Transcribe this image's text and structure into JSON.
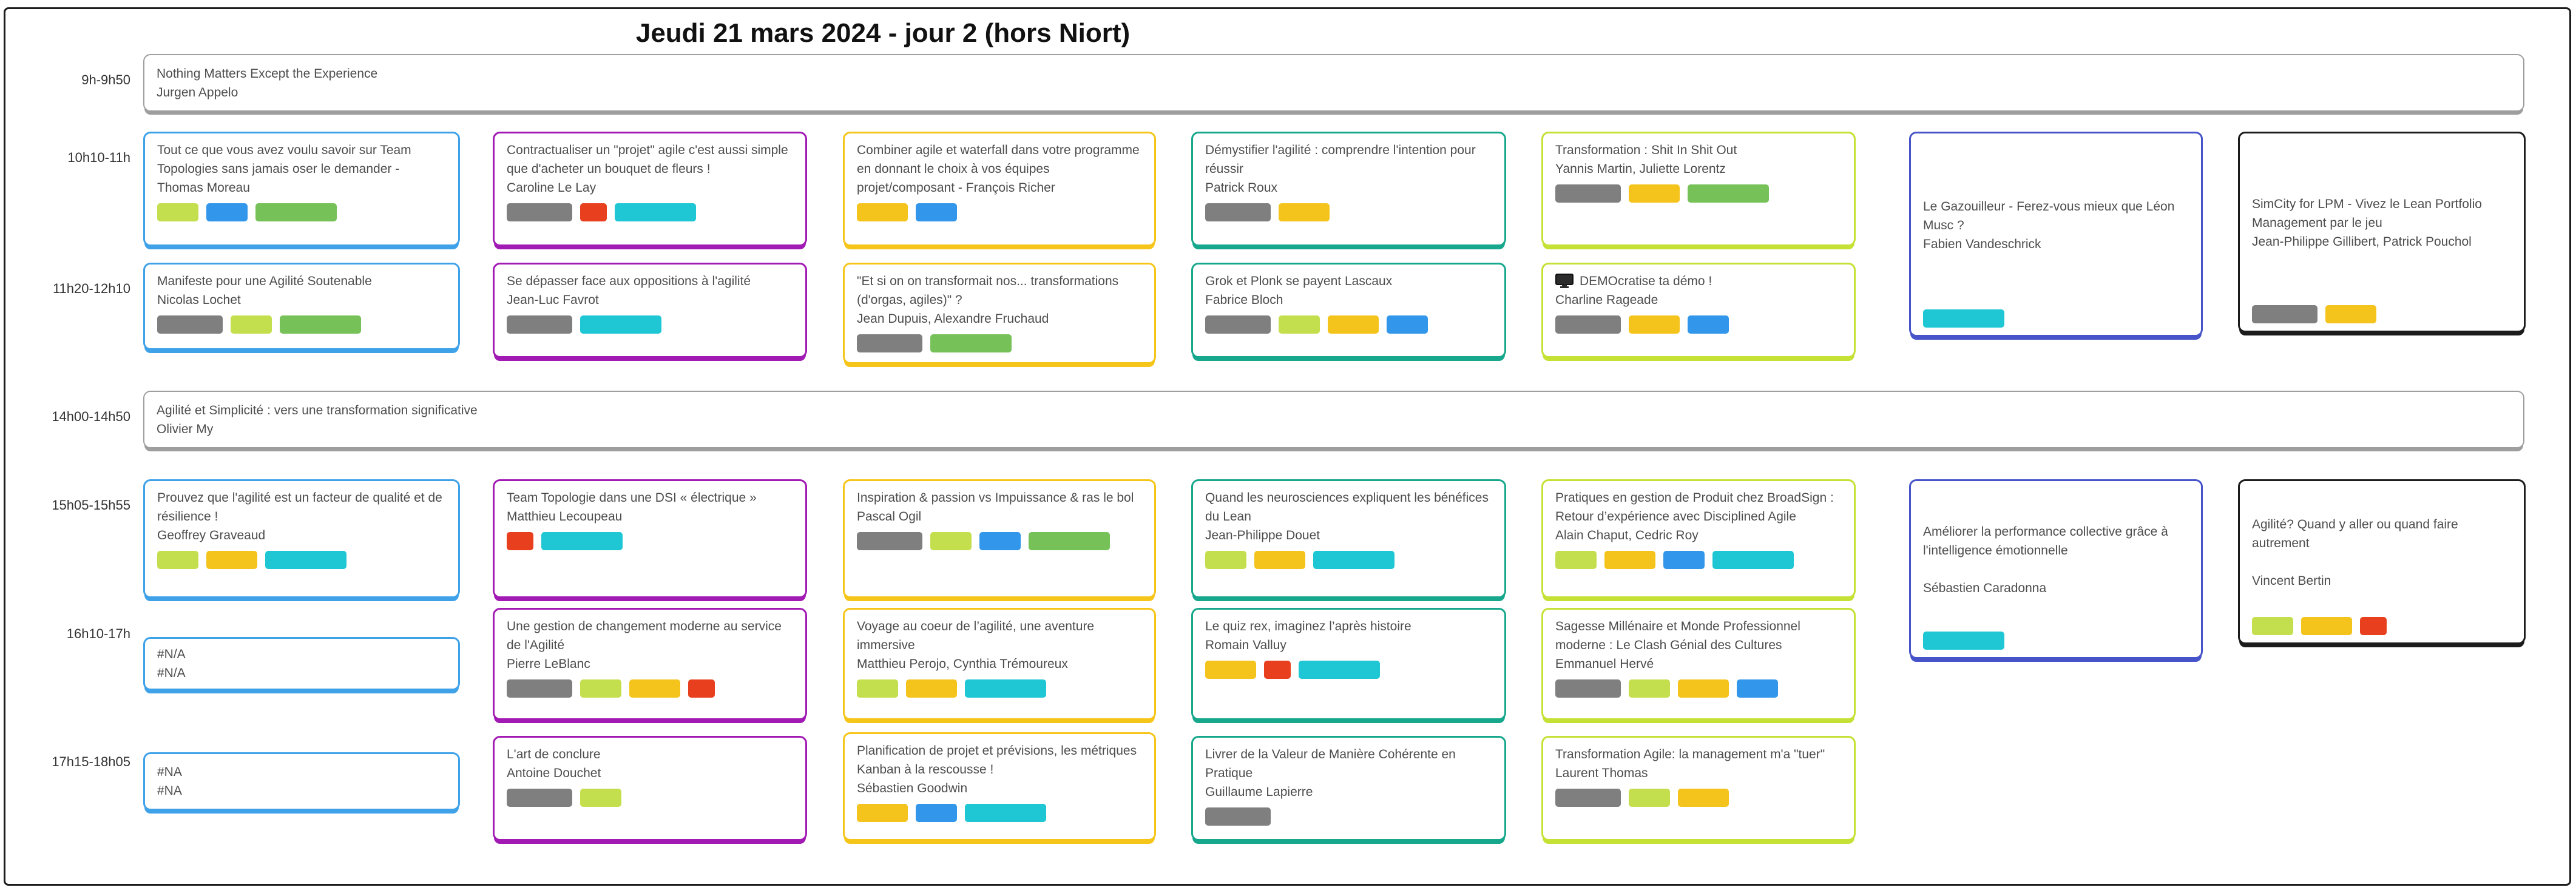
{
  "title": "Jeudi 21 mars 2024 - jour 2 (hors Niort)",
  "time_slots": [
    "9h-9h50",
    "10h10-11h",
    "11h20-12h10",
    "14h00-14h50",
    "15h05-15h55",
    "16h10-17h",
    "17h15-18h05"
  ],
  "palette": {
    "borders": {
      "blue": "#3FA2E9",
      "purple": "#A21AB4",
      "yellow": "#F6C51A",
      "teal": "#16A78C",
      "lime": "#C5E135",
      "indigo": "#4754C9",
      "black": "#1C1C1C",
      "gray": "#9E9E9E"
    },
    "tags": {
      "gray": "#7F7F7F",
      "lime": "#C4DF4D",
      "green": "#76C258",
      "blue": "#3296EA",
      "yellow": "#F5C41C",
      "teal": "#1FC7D5",
      "red": "#E8401F"
    }
  },
  "sessions": [
    {
      "id": "nothing-matters",
      "row": 0,
      "track": "full",
      "border": "gray",
      "title": "Nothing Matters Except the Experience",
      "speaker": "Jurgen Appelo",
      "tags": []
    },
    {
      "id": "team-topologies",
      "row": 1,
      "track": 0,
      "border": "blue",
      "title": "Tout ce que vous avez voulu savoir sur Team Topologies sans jamais oser le demander - Thomas Moreau",
      "speaker": "",
      "tags": [
        {
          "color": "lime",
          "size": "s"
        },
        {
          "color": "blue",
          "size": "s"
        },
        {
          "color": "green",
          "size": "xl"
        }
      ]
    },
    {
      "id": "contractualiser",
      "row": 1,
      "track": 1,
      "border": "purple",
      "title": "Contractualiser un \"projet\" agile c'est aussi simple que d'acheter un bouquet de fleurs !",
      "speaker": "Caroline Le Lay",
      "tags": [
        {
          "color": "gray",
          "size": "l"
        },
        {
          "color": "red",
          "size": "xs"
        },
        {
          "color": "teal",
          "size": "xl"
        }
      ]
    },
    {
      "id": "combiner",
      "row": 1,
      "track": 2,
      "border": "yellow",
      "title": "Combiner agile et waterfall dans votre programme en donnant le choix à vos équipes projet/composant - François Richer",
      "speaker": "",
      "tags": [
        {
          "color": "yellow",
          "size": "m"
        },
        {
          "color": "blue",
          "size": "s"
        }
      ]
    },
    {
      "id": "demystifier",
      "row": 1,
      "track": 3,
      "border": "teal",
      "title": "Démystifier l'agilité : comprendre l'intention pour réussir",
      "speaker": "Patrick Roux",
      "tags": [
        {
          "color": "gray",
          "size": "l"
        },
        {
          "color": "yellow",
          "size": "m"
        }
      ]
    },
    {
      "id": "shit-in-shit-out",
      "row": 1,
      "track": 4,
      "border": "lime",
      "title": "Transformation : Shit In Shit Out",
      "speaker": "Yannis Martin, Juliette Lorentz",
      "tags": [
        {
          "color": "gray",
          "size": "l"
        },
        {
          "color": "yellow",
          "size": "m"
        },
        {
          "color": "green",
          "size": "xl"
        }
      ]
    },
    {
      "id": "gazouilleur",
      "row": 1,
      "track": 5,
      "border": "indigo",
      "tall": true,
      "title": "Le Gazouilleur - Ferez-vous mieux que Léon Musc ?",
      "speaker": "Fabien Vandeschrick",
      "tags": [
        {
          "color": "teal",
          "size": "xl"
        }
      ]
    },
    {
      "id": "simcity",
      "row": 1,
      "track": 6,
      "border": "black",
      "tall": true,
      "title": "SimCity for LPM - Vivez le Lean Portfolio Management par le jeu",
      "speaker": "Jean-Philippe Gillibert, Patrick Pouchol",
      "tags": [
        {
          "color": "gray",
          "size": "l"
        },
        {
          "color": "yellow",
          "size": "m"
        }
      ]
    },
    {
      "id": "manifeste",
      "row": 2,
      "track": 0,
      "border": "blue",
      "title": "Manifeste pour une Agilité Soutenable",
      "speaker": "Nicolas Lochet",
      "tags": [
        {
          "color": "gray",
          "size": "l"
        },
        {
          "color": "lime",
          "size": "s"
        },
        {
          "color": "green",
          "size": "xl"
        }
      ]
    },
    {
      "id": "se-depasser",
      "row": 2,
      "track": 1,
      "border": "purple",
      "title": "Se dépasser face aux oppositions à l'agilité",
      "speaker": "Jean-Luc Favrot",
      "tags": [
        {
          "color": "gray",
          "size": "l"
        },
        {
          "color": "teal",
          "size": "xl"
        }
      ]
    },
    {
      "id": "et-si-on",
      "row": 2,
      "track": 2,
      "border": "yellow",
      "title": "\"Et si on on transformait nos... transformations (d'orgas, agiles)\" ?",
      "speaker": "Jean Dupuis, Alexandre Fruchaud",
      "tags": [
        {
          "color": "gray",
          "size": "l"
        },
        {
          "color": "green",
          "size": "xl"
        }
      ]
    },
    {
      "id": "grok-plonk",
      "row": 2,
      "track": 3,
      "border": "teal",
      "title": "Grok et Plonk se payent Lascaux",
      "speaker": "Fabrice Bloch",
      "tags": [
        {
          "color": "gray",
          "size": "l"
        },
        {
          "color": "lime",
          "size": "s"
        },
        {
          "color": "yellow",
          "size": "m"
        },
        {
          "color": "blue",
          "size": "s"
        }
      ]
    },
    {
      "id": "democratise",
      "row": 2,
      "track": 4,
      "border": "lime",
      "icon": "monitor",
      "title": "DEMOcratise ta démo !",
      "speaker": "Charline Rageade",
      "tags": [
        {
          "color": "gray",
          "size": "l"
        },
        {
          "color": "yellow",
          "size": "m"
        },
        {
          "color": "blue",
          "size": "s"
        }
      ]
    },
    {
      "id": "agilite-simplicite",
      "row": 3,
      "track": "full",
      "border": "gray",
      "title": "Agilité et Simplicité : vers une transformation significative",
      "speaker": "Olivier My",
      "tags": []
    },
    {
      "id": "prouvez",
      "row": 4,
      "track": 0,
      "border": "blue",
      "title": "Prouvez que l'agilité est un facteur de qualité et de résilience !",
      "speaker": "Geoffrey Graveaud",
      "tags": [
        {
          "color": "lime",
          "size": "s"
        },
        {
          "color": "yellow",
          "size": "m"
        },
        {
          "color": "teal",
          "size": "xl"
        }
      ]
    },
    {
      "id": "team-topologie-dsi",
      "row": 4,
      "track": 1,
      "border": "purple",
      "title": "Team Topologie dans une DSI « électrique »",
      "speaker": "Matthieu Lecoupeau",
      "tags": [
        {
          "color": "red",
          "size": "xs"
        },
        {
          "color": "teal",
          "size": "xl"
        }
      ]
    },
    {
      "id": "inspiration",
      "row": 4,
      "track": 2,
      "border": "yellow",
      "title": "Inspiration & passion vs Impuissance & ras le bol",
      "speaker": "Pascal Ogil",
      "tags": [
        {
          "color": "gray",
          "size": "l"
        },
        {
          "color": "lime",
          "size": "s"
        },
        {
          "color": "blue",
          "size": "s"
        },
        {
          "color": "green",
          "size": "xl"
        }
      ]
    },
    {
      "id": "neurosciences",
      "row": 4,
      "track": 3,
      "border": "teal",
      "title": "Quand les neurosciences expliquent les bénéfices du Lean",
      "speaker": "Jean-Philippe Douet",
      "tags": [
        {
          "color": "lime",
          "size": "s"
        },
        {
          "color": "yellow",
          "size": "m"
        },
        {
          "color": "teal",
          "size": "xl"
        }
      ]
    },
    {
      "id": "broadsign",
      "row": 4,
      "track": 4,
      "border": "lime",
      "title": "Pratiques en gestion de Produit chez BroadSign : Retour d’expérience avec Disciplined Agile",
      "speaker": "Alain Chaput, Cedric Roy",
      "tags": [
        {
          "color": "lime",
          "size": "s"
        },
        {
          "color": "yellow",
          "size": "m"
        },
        {
          "color": "blue",
          "size": "s"
        },
        {
          "color": "teal",
          "size": "xl"
        }
      ]
    },
    {
      "id": "ameliorer",
      "row": 4,
      "track": 5,
      "border": "indigo",
      "tall": true,
      "speaker_gap": true,
      "title": "Améliorer la performance collective grâce à l'intelligence émotionnelle",
      "speaker": "Sébastien Caradonna",
      "tags": [
        {
          "color": "teal",
          "size": "xl"
        }
      ]
    },
    {
      "id": "agilite-quand",
      "row": 4,
      "track": 6,
      "border": "black",
      "tall": true,
      "speaker_gap": true,
      "title": "Agilité? Quand y aller ou quand faire autrement",
      "speaker": "Vincent Bertin",
      "tags": [
        {
          "color": "lime",
          "size": "s"
        },
        {
          "color": "yellow",
          "size": "m"
        },
        {
          "color": "red",
          "size": "xs"
        }
      ]
    },
    {
      "id": "na-16h",
      "row": 5,
      "track": 0,
      "border": "blue",
      "small": true,
      "title": "#N/A",
      "speaker": "#N/A",
      "tags": []
    },
    {
      "id": "gestion-changement",
      "row": 5,
      "track": 1,
      "border": "purple",
      "title": "Une gestion de changement moderne au service de l'Agilité",
      "speaker": "Pierre LeBlanc",
      "tags": [
        {
          "color": "gray",
          "size": "l"
        },
        {
          "color": "lime",
          "size": "s"
        },
        {
          "color": "yellow",
          "size": "m"
        },
        {
          "color": "red",
          "size": "xs"
        }
      ]
    },
    {
      "id": "voyage",
      "row": 5,
      "track": 2,
      "border": "yellow",
      "title": "Voyage au coeur de l’agilité, une aventure immersive",
      "speaker": "Matthieu Perojo, Cynthia Trémoureux",
      "tags": [
        {
          "color": "lime",
          "size": "s"
        },
        {
          "color": "yellow",
          "size": "m"
        },
        {
          "color": "teal",
          "size": "xl"
        }
      ]
    },
    {
      "id": "quiz-rex",
      "row": 5,
      "track": 3,
      "border": "teal",
      "title": "Le quiz rex, imaginez l’après histoire",
      "speaker": "Romain Valluy",
      "tags": [
        {
          "color": "yellow",
          "size": "m"
        },
        {
          "color": "red",
          "size": "xs"
        },
        {
          "color": "teal",
          "size": "xl"
        }
      ]
    },
    {
      "id": "sagesse",
      "row": 5,
      "track": 4,
      "border": "lime",
      "title": "Sagesse Millénaire et Monde Professionnel moderne : Le Clash Génial des Cultures",
      "speaker": "Emmanuel Hervé",
      "tags": [
        {
          "color": "gray",
          "size": "l"
        },
        {
          "color": "lime",
          "size": "s"
        },
        {
          "color": "yellow",
          "size": "m"
        },
        {
          "color": "blue",
          "size": "s"
        }
      ]
    },
    {
      "id": "na-17h",
      "row": 6,
      "track": 0,
      "border": "blue",
      "small": true,
      "title": "#NA",
      "speaker": "#NA",
      "tags": []
    },
    {
      "id": "art-conclure",
      "row": 6,
      "track": 1,
      "border": "purple",
      "title": "L'art de conclure",
      "speaker": "Antoine Douchet",
      "tags": [
        {
          "color": "gray",
          "size": "l"
        },
        {
          "color": "lime",
          "size": "s"
        }
      ]
    },
    {
      "id": "planification",
      "row": 6,
      "track": 2,
      "border": "yellow",
      "title": "Planification de projet et prévisions, les métriques Kanban à la rescousse !",
      "speaker": "Sébastien Goodwin",
      "tags": [
        {
          "color": "yellow",
          "size": "m"
        },
        {
          "color": "blue",
          "size": "s"
        },
        {
          "color": "teal",
          "size": "xl"
        }
      ]
    },
    {
      "id": "livrer-valeur",
      "row": 6,
      "track": 3,
      "border": "teal",
      "title": "Livrer de la Valeur de Manière Cohérente en Pratique",
      "speaker": "Guillaume Lapierre",
      "tags": [
        {
          "color": "gray",
          "size": "l"
        }
      ]
    },
    {
      "id": "transformation-agile",
      "row": 6,
      "track": 4,
      "border": "lime",
      "title": "Transformation Agile: la management m'a \"tuer\"",
      "speaker": "Laurent Thomas",
      "tags": [
        {
          "color": "gray",
          "size": "l"
        },
        {
          "color": "lime",
          "size": "s"
        },
        {
          "color": "yellow",
          "size": "m"
        }
      ]
    }
  ]
}
